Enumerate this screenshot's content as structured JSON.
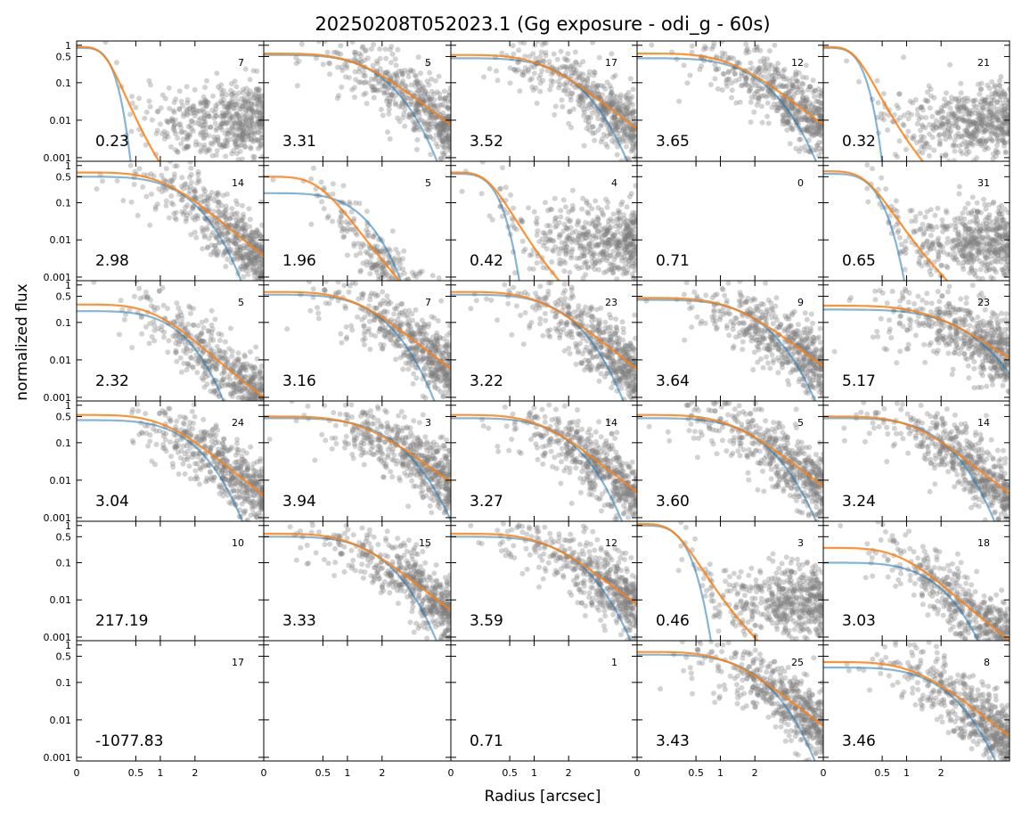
{
  "chart_data": {
    "type": "scatter",
    "title": "20250208T052023.1 (Gg exposure - odi_g - 60s)",
    "xlabel": "Radius [arcsec]",
    "ylabel": "normalized flux",
    "y_scale": "log",
    "ylim": [
      0.0008,
      1.3
    ],
    "x_scale": "sqrt",
    "xlim": [
      0,
      5
    ],
    "x_ticks": [
      {
        "value": 0,
        "label": "0"
      },
      {
        "value": 0.5,
        "label": "0.5"
      },
      {
        "value": 1,
        "label": "1"
      },
      {
        "value": 2,
        "label": "2"
      }
    ],
    "y_ticks": [
      {
        "value": 1,
        "label": "1"
      },
      {
        "value": 0.5,
        "label": "0.5"
      },
      {
        "value": 0.1,
        "label": "0.1"
      },
      {
        "value": 0.01,
        "label": "0.01"
      },
      {
        "value": 0.001,
        "label": "0.001"
      }
    ],
    "grid": false,
    "layout": {
      "rows": 6,
      "cols": 5
    },
    "colors": {
      "points": "#7f7f7f",
      "gaussian_fit": "#1f77b4",
      "moffat_fit": "#ff7f0e"
    },
    "panels": [
      {
        "fwhm": "0.23",
        "count": "7",
        "g": {
          "a": 0.85,
          "s": 0.15,
          "r0": 0.0
        },
        "m": {
          "a": 0.9,
          "al": 0.2,
          "b": 2.2
        },
        "shape": "narrow-halo"
      },
      {
        "fwhm": "3.31",
        "count": "5",
        "g": {
          "a": 0.55,
          "s": 1.6,
          "r0": 0.0
        },
        "m": {
          "a": 0.6,
          "al": 2.4,
          "b": 2.6
        },
        "shape": "wide"
      },
      {
        "fwhm": "3.52",
        "count": "17",
        "g": {
          "a": 0.45,
          "s": 1.7,
          "r0": 0.0
        },
        "m": {
          "a": 0.55,
          "al": 2.3,
          "b": 2.6
        },
        "shape": "wide"
      },
      {
        "fwhm": "3.65",
        "count": "12",
        "g": {
          "a": 0.45,
          "s": 1.75,
          "r0": 0.0
        },
        "m": {
          "a": 0.6,
          "al": 2.4,
          "b": 2.6
        },
        "shape": "wide"
      },
      {
        "fwhm": "0.32",
        "count": "21",
        "g": {
          "a": 0.85,
          "s": 0.18,
          "r0": 0.0
        },
        "m": {
          "a": 0.9,
          "al": 0.25,
          "b": 2.0
        },
        "shape": "narrow-halo"
      },
      {
        "fwhm": "2.98",
        "count": "14",
        "g": {
          "a": 0.5,
          "s": 1.45,
          "r0": 0.0
        },
        "m": {
          "a": 0.65,
          "al": 2.0,
          "b": 2.6
        },
        "shape": "wide"
      },
      {
        "fwhm": "1.96",
        "count": "5",
        "g": {
          "a": 0.18,
          "s": 1.1,
          "r0": 0.0
        },
        "m": {
          "a": 0.5,
          "al": 0.8,
          "b": 2.6
        },
        "shape": "mid"
      },
      {
        "fwhm": "0.42",
        "count": "4",
        "g": {
          "a": 0.6,
          "s": 0.25,
          "r0": 0.0
        },
        "m": {
          "a": 0.65,
          "al": 0.35,
          "b": 2.1
        },
        "shape": "narrow-halo"
      },
      {
        "fwhm": "0.71",
        "count": "0",
        "g": null,
        "m": null,
        "shape": "empty"
      },
      {
        "fwhm": "0.65",
        "count": "31",
        "g": {
          "a": 0.6,
          "s": 0.35,
          "r0": 0.0
        },
        "m": {
          "a": 0.7,
          "al": 0.45,
          "b": 2.1
        },
        "shape": "narrow-halo"
      },
      {
        "fwhm": "2.32",
        "count": "5",
        "g": {
          "a": 0.2,
          "s": 1.25,
          "r0": 0.0
        },
        "m": {
          "a": 0.3,
          "al": 1.6,
          "b": 2.4
        },
        "shape": "mid"
      },
      {
        "fwhm": "3.16",
        "count": "7",
        "g": {
          "a": 0.55,
          "s": 1.55,
          "r0": 0.0
        },
        "m": {
          "a": 0.65,
          "al": 2.2,
          "b": 2.6
        },
        "shape": "wide"
      },
      {
        "fwhm": "3.22",
        "count": "23",
        "g": {
          "a": 0.55,
          "s": 1.6,
          "r0": 0.0
        },
        "m": {
          "a": 0.65,
          "al": 2.2,
          "b": 2.6
        },
        "shape": "wide"
      },
      {
        "fwhm": "3.64",
        "count": "9",
        "g": {
          "a": 0.4,
          "s": 1.75,
          "r0": 0.0
        },
        "m": {
          "a": 0.45,
          "al": 2.5,
          "b": 2.6
        },
        "shape": "wide"
      },
      {
        "fwhm": "5.17",
        "count": "23",
        "g": {
          "a": 0.22,
          "s": 2.4,
          "r0": 0.0
        },
        "m": {
          "a": 0.28,
          "al": 3.2,
          "b": 2.6
        },
        "shape": "wide"
      },
      {
        "fwhm": "3.04",
        "count": "24",
        "g": {
          "a": 0.4,
          "s": 1.5,
          "r0": 0.0
        },
        "m": {
          "a": 0.55,
          "al": 2.1,
          "b": 2.6
        },
        "shape": "wide"
      },
      {
        "fwhm": "3.94",
        "count": "3",
        "g": {
          "a": 0.45,
          "s": 1.9,
          "r0": 0.0
        },
        "m": {
          "a": 0.5,
          "al": 2.6,
          "b": 2.6
        },
        "shape": "wide"
      },
      {
        "fwhm": "3.27",
        "count": "14",
        "g": {
          "a": 0.45,
          "s": 1.6,
          "r0": 0.0
        },
        "m": {
          "a": 0.55,
          "al": 2.2,
          "b": 2.6
        },
        "shape": "wide"
      },
      {
        "fwhm": "3.60",
        "count": "5",
        "g": {
          "a": 0.45,
          "s": 1.75,
          "r0": 0.0
        },
        "m": {
          "a": 0.55,
          "al": 2.4,
          "b": 2.6
        },
        "shape": "wide"
      },
      {
        "fwhm": "3.24",
        "count": "14",
        "g": {
          "a": 0.45,
          "s": 1.6,
          "r0": 0.0
        },
        "m": {
          "a": 0.5,
          "al": 2.2,
          "b": 2.6
        },
        "shape": "wide"
      },
      {
        "fwhm": "217.19",
        "count": "10",
        "g": null,
        "m": null,
        "shape": "empty"
      },
      {
        "fwhm": "3.33",
        "count": "15",
        "g": {
          "a": 0.5,
          "s": 1.6,
          "r0": 0.0
        },
        "m": {
          "a": 0.6,
          "al": 2.2,
          "b": 2.6
        },
        "shape": "wide"
      },
      {
        "fwhm": "3.59",
        "count": "12",
        "g": {
          "a": 0.5,
          "s": 1.75,
          "r0": 0.0
        },
        "m": {
          "a": 0.6,
          "al": 2.4,
          "b": 2.6
        },
        "shape": "wide"
      },
      {
        "fwhm": "0.46",
        "count": "3",
        "g": {
          "a": 1.0,
          "s": 0.28,
          "r0": 0.0
        },
        "m": {
          "a": 1.1,
          "al": 0.35,
          "b": 2.0
        },
        "shape": "narrow-halo"
      },
      {
        "fwhm": "3.03",
        "count": "18",
        "g": {
          "a": 0.1,
          "s": 1.5,
          "r0": 0.0
        },
        "m": {
          "a": 0.25,
          "al": 1.6,
          "b": 2.4
        },
        "shape": "mid"
      },
      {
        "fwhm": "-1077.83",
        "count": "17",
        "g": null,
        "m": null,
        "shape": "empty"
      },
      {
        "fwhm": "",
        "count": "",
        "g": null,
        "m": null,
        "shape": "empty"
      },
      {
        "fwhm": "0.71",
        "count": "1",
        "g": null,
        "m": null,
        "shape": "empty"
      },
      {
        "fwhm": "3.43",
        "count": "25",
        "g": {
          "a": 0.55,
          "s": 1.7,
          "r0": 0.0
        },
        "m": {
          "a": 0.65,
          "al": 2.3,
          "b": 2.6
        },
        "shape": "wide"
      },
      {
        "fwhm": "3.46",
        "count": "8",
        "g": {
          "a": 0.25,
          "s": 1.7,
          "r0": 0.0
        },
        "m": {
          "a": 0.35,
          "al": 2.3,
          "b": 2.6
        },
        "shape": "wide"
      }
    ]
  }
}
